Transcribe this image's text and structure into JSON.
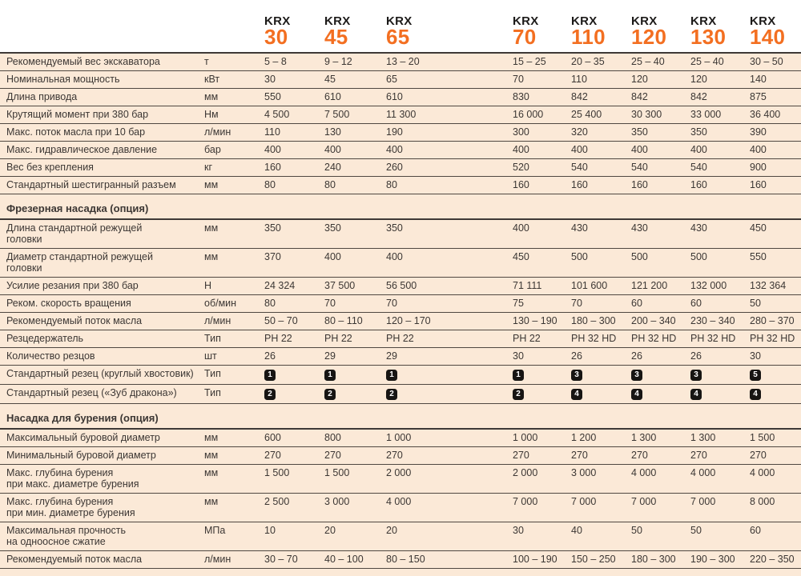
{
  "colors": {
    "page_background": "#fbe9d7",
    "header_background": "#ffffff",
    "accent_orange": "#f36f21",
    "rule_line": "#3e3936",
    "text": "#3c3734",
    "badge_background": "#171513",
    "badge_text": "#ffffff"
  },
  "header": {
    "brand": "KRX",
    "models": [
      "30",
      "45",
      "65",
      "70",
      "110",
      "120",
      "130",
      "140"
    ]
  },
  "sections": [
    {
      "title": "",
      "rows": [
        {
          "label": "Рекомендуемый вес экскаватора",
          "unit": "т",
          "values": [
            "5 – 8",
            "9 – 12",
            "13 – 20",
            "15 – 25",
            "20 – 35",
            "25 – 40",
            "25 – 40",
            "30 – 50"
          ]
        },
        {
          "label": "Номинальная мощность",
          "unit": "кВт",
          "values": [
            "30",
            "45",
            "65",
            "70",
            "110",
            "120",
            "120",
            "140"
          ]
        },
        {
          "label": "Длина привода",
          "unit": "мм",
          "values": [
            "550",
            "610",
            "610",
            "830",
            "842",
            "842",
            "842",
            "875"
          ]
        },
        {
          "label": "Крутящий момент при 380 бар",
          "unit": "Нм",
          "values": [
            "4 500",
            "7 500",
            "11 300",
            "16 000",
            "25 400",
            "30 300",
            "33 000",
            "36 400"
          ]
        },
        {
          "label": "Макс. поток масла при 10 бар",
          "unit": "л/мин",
          "values": [
            "110",
            "130",
            "190",
            "300",
            "320",
            "350",
            "350",
            "390"
          ]
        },
        {
          "label": "Макс. гидравлическое давление",
          "unit": "бар",
          "values": [
            "400",
            "400",
            "400",
            "400",
            "400",
            "400",
            "400",
            "400"
          ]
        },
        {
          "label": "Вес без крепления",
          "unit": "кг",
          "values": [
            "160",
            "240",
            "260",
            "520",
            "540",
            "540",
            "540",
            "900"
          ]
        },
        {
          "label": "Стандартный шестигранный разъем",
          "unit": "мм",
          "values": [
            "80",
            "80",
            "80",
            "160",
            "160",
            "160",
            "160",
            "160"
          ]
        }
      ]
    },
    {
      "title": "Фрезерная насадка (опция)",
      "rows": [
        {
          "label": "Длина стандартной режущей",
          "label2": "головки",
          "unit": "мм",
          "values": [
            "350",
            "350",
            "350",
            "400",
            "430",
            "430",
            "430",
            "450"
          ]
        },
        {
          "label": "Диаметр стандартной режущей",
          "label2": "головки",
          "unit": "мм",
          "values": [
            "370",
            "400",
            "400",
            "450",
            "500",
            "500",
            "500",
            "550"
          ]
        },
        {
          "label": "Усилие резания при 380 бар",
          "unit": "Н",
          "values": [
            "24 324",
            "37 500",
            "56 500",
            "71 111",
            "101 600",
            "121 200",
            "132 000",
            "132 364"
          ]
        },
        {
          "label": "Реком. скорость вращения",
          "unit": "об/мин",
          "values": [
            "80",
            "70",
            "70",
            "75",
            "70",
            "60",
            "60",
            "50"
          ]
        },
        {
          "label": "Рекомендуемый поток масла",
          "unit": "л/мин",
          "values": [
            "50 – 70",
            "80 – 110",
            "120 – 170",
            "130 – 190",
            "180 – 300",
            "200 – 340",
            "230 – 340",
            "280 – 370"
          ]
        },
        {
          "label": "Резцедержатель",
          "unit": "Тип",
          "values": [
            "PH 22",
            "PH 22",
            "PH 22",
            "PH 22",
            "PH 32 HD",
            "PH 32 HD",
            "PH 32 HD",
            "PH 32 HD"
          ]
        },
        {
          "label": "Количество резцов",
          "unit": "шт",
          "values": [
            "26",
            "29",
            "29",
            "30",
            "26",
            "26",
            "26",
            "30"
          ]
        },
        {
          "label": "Стандартный резец (круглый хвостовик)",
          "unit": "Тип",
          "badges": true,
          "values": [
            "1",
            "1",
            "1",
            "1",
            "3",
            "3",
            "3",
            "5"
          ]
        },
        {
          "label": "Стандартный резец («Зуб дракона»)",
          "unit": "Тип",
          "badges": true,
          "values": [
            "2",
            "2",
            "2",
            "2",
            "4",
            "4",
            "4",
            "4"
          ]
        }
      ]
    },
    {
      "title": "Насадка для бурения (опция)",
      "rows": [
        {
          "label": "Максимальный буровой диаметр",
          "unit": "мм",
          "values": [
            "600",
            "800",
            "1 000",
            "1 000",
            "1 200",
            "1 300",
            "1 300",
            "1 500"
          ]
        },
        {
          "label": "Минимальный буровой диаметр",
          "unit": "мм",
          "values": [
            "270",
            "270",
            "270",
            "270",
            "270",
            "270",
            "270",
            "270"
          ]
        },
        {
          "label": "Макс. глубина бурения",
          "label2": "при макс. диаметре бурения",
          "unit": "мм",
          "values": [
            "1 500",
            "1 500",
            "2 000",
            "2 000",
            "3 000",
            "4 000",
            "4 000",
            "4 000"
          ]
        },
        {
          "label": "Макс. глубина бурения",
          "label2": "при мин. диаметре бурения",
          "unit": "мм",
          "values": [
            "2 500",
            "3 000",
            "4 000",
            "7 000",
            "7 000",
            "7 000",
            "7 000",
            "8 000"
          ]
        },
        {
          "label": "Максимальная прочность",
          "label2": "на одноосное сжатие",
          "unit": "МПа",
          "values": [
            "10",
            "20",
            "20",
            "30",
            "40",
            "50",
            "50",
            "60"
          ]
        },
        {
          "label": "Рекомендуемый поток масла",
          "unit": "л/мин",
          "values": [
            "30 – 70",
            "40 – 100",
            "80 – 150",
            "100 – 190",
            "150 – 250",
            "180 – 300",
            "190 – 300",
            "220 – 350"
          ]
        }
      ]
    }
  ]
}
